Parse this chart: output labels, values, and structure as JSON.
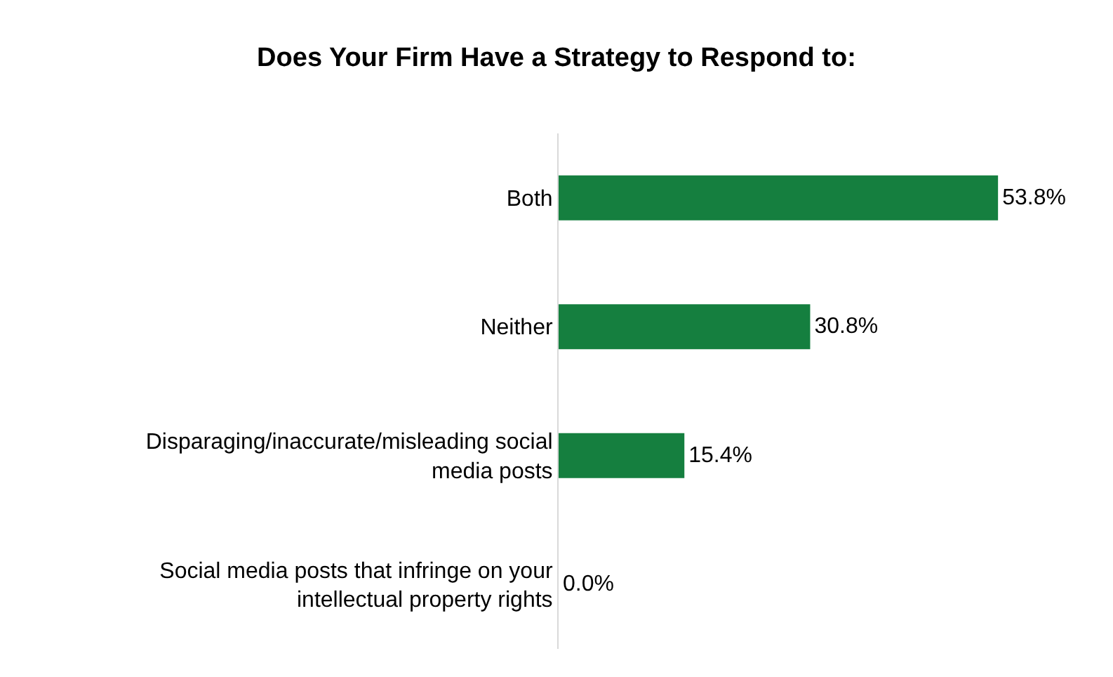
{
  "chart_data": {
    "type": "bar",
    "orientation": "horizontal",
    "title": "Does Your Firm Have a Strategy to Respond to:",
    "categories": [
      "Both",
      "Neither",
      "Disparaging/inaccurate/misleading social media posts",
      "Social media posts that infringe on your intellectual property rights"
    ],
    "values": [
      53.8,
      30.8,
      15.4,
      0.0
    ],
    "value_labels": [
      "53.8%",
      "30.8%",
      "15.4%",
      "0.0%"
    ],
    "color": "#157f3f"
  }
}
